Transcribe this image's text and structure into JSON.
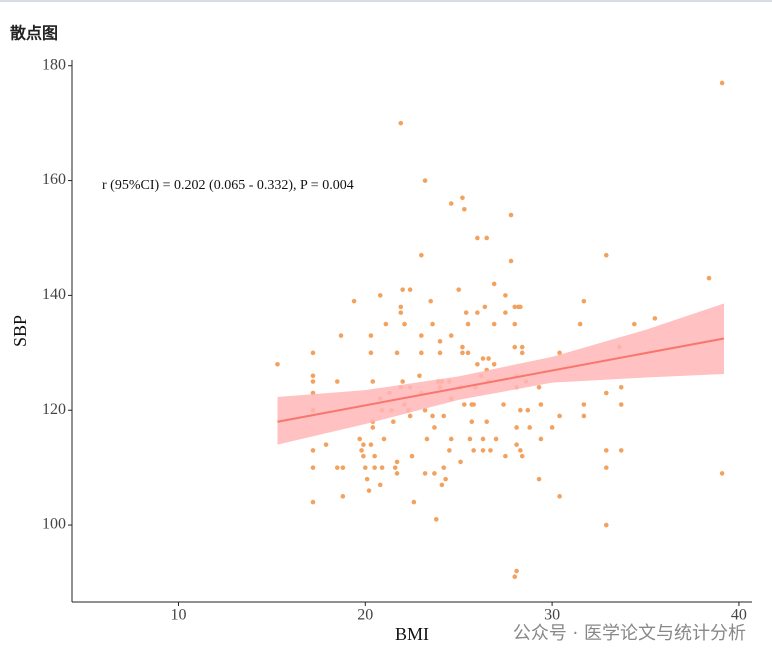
{
  "chart_data": {
    "type": "scatter",
    "title": "散点图",
    "xlabel": "BMI",
    "ylabel": "SBP",
    "annotation": "r (95%CI) = 0.202 (0.065 - 0.332), P = 0.004",
    "watermark": "公众号 · 医学论文与统计分析",
    "color": "#f2a25e",
    "line_color": "#f8766d",
    "band_color": "#ffb6b6",
    "xlim": [
      4.3,
      40.7
    ],
    "ylim": [
      86.6,
      181
    ],
    "xticks": [
      10,
      20,
      30,
      40
    ],
    "yticks": [
      100,
      120,
      140,
      160,
      180
    ],
    "x": [
      15.3,
      17.2,
      17.2,
      17.2,
      17.2,
      17.2,
      17.2,
      17.2,
      17.2,
      17.9,
      18.5,
      18.5,
      18.8,
      18.7,
      18.8,
      19.4,
      19.7,
      19.8,
      19.9,
      20,
      20.1,
      20.2,
      19.9,
      20.3,
      20.3,
      20.4,
      20.4,
      20.4,
      20.5,
      20.5,
      20.3,
      20.8,
      20.8,
      20.9,
      21,
      20.8,
      20.9,
      21.1,
      21.3,
      21.4,
      21.5,
      21.6,
      21.7,
      21.7,
      21.7,
      21.9,
      22,
      21.9,
      21.9,
      22.1,
      22,
      21.9,
      22.1,
      22.4,
      22.3,
      22.4,
      22.4,
      22.5,
      22.6,
      23,
      23,
      23,
      22.9,
      23,
      23.2,
      23.3,
      23.2,
      23.2,
      23.5,
      23.6,
      23.6,
      23.7,
      23.7,
      23.8,
      24,
      24,
      23.9,
      24,
      24.1,
      24.2,
      24.3,
      24.2,
      24.1,
      24.6,
      24.6,
      24.5,
      24.6,
      24.6,
      24.5,
      25,
      25.2,
      25.1,
      25.1,
      25.2,
      25.2,
      25.3,
      25.3,
      25.4,
      25.5,
      25.5,
      25.7,
      25.8,
      25.8,
      25.7,
      25.6,
      26,
      26,
      25.9,
      26,
      26.2,
      26.3,
      26.3,
      26.3,
      26.4,
      26.5,
      26.5,
      26.6,
      26.6,
      26.7,
      26.5,
      26.9,
      26.9,
      26.9,
      27,
      27.5,
      27.5,
      27.4,
      27.5,
      27.8,
      27.8,
      28,
      28,
      28,
      28.1,
      28,
      28.1,
      28.1,
      28.1,
      28.3,
      28.1,
      28.2,
      28.3,
      28.4,
      28.4,
      28.3,
      28.4,
      28.6,
      28.7,
      28.8,
      29.3,
      29.4,
      29.4,
      29.3,
      30,
      30.4,
      30.4,
      30.4,
      31.5,
      31.7,
      31.7,
      31.7,
      32.9,
      32.9,
      32.9,
      32.9,
      32.9,
      33.6,
      33.7,
      33.7,
      33.7,
      34.4,
      35.5,
      38.4,
      39.1,
      39.1
    ],
    "y": [
      128,
      130,
      126,
      125,
      123,
      120,
      113,
      110,
      104,
      114,
      125,
      110,
      110,
      133,
      105,
      139,
      115,
      113,
      114,
      110,
      108,
      106,
      112,
      133,
      130,
      125,
      118,
      117,
      112,
      110,
      114,
      140,
      122,
      120,
      115,
      107,
      110,
      135,
      123,
      120,
      118,
      110,
      109,
      111,
      130,
      170,
      141,
      138,
      137,
      135,
      125,
      124,
      121,
      124,
      120,
      119,
      141,
      112,
      104,
      147,
      133,
      130,
      126,
      123,
      120,
      115,
      109,
      160,
      139,
      135,
      119,
      117,
      109,
      101,
      132,
      130,
      125,
      124,
      125,
      119,
      108,
      110,
      107,
      156,
      133,
      125,
      122,
      115,
      113,
      141,
      157,
      124,
      111,
      130,
      131,
      121,
      155,
      137,
      135,
      130,
      118,
      113,
      121,
      121,
      115,
      150,
      128,
      124,
      137,
      126,
      129,
      115,
      113,
      138,
      127,
      150,
      129,
      125,
      113,
      118,
      142,
      135,
      128,
      115,
      140,
      137,
      121,
      112,
      154,
      146,
      131,
      135,
      138,
      117,
      91,
      92,
      126,
      124,
      120,
      114,
      138,
      138,
      131,
      130,
      113,
      112,
      125,
      120,
      117,
      124,
      121,
      115,
      108,
      117,
      119,
      130,
      105,
      135,
      139,
      121,
      119,
      147,
      123,
      113,
      110,
      100,
      131,
      124,
      121,
      113,
      135,
      136,
      143,
      177,
      109
    ],
    "fit": {
      "x": [
        15.3,
        39.2
      ],
      "y": [
        118,
        132.5
      ]
    },
    "ci": {
      "x": [
        15.3,
        20,
        25,
        30,
        35,
        39.2
      ],
      "lower": [
        114,
        117.6,
        121.8,
        124.8,
        125.7,
        126.3
      ],
      "upper": [
        122.3,
        123.5,
        125.9,
        129.3,
        134,
        138.6
      ]
    }
  }
}
